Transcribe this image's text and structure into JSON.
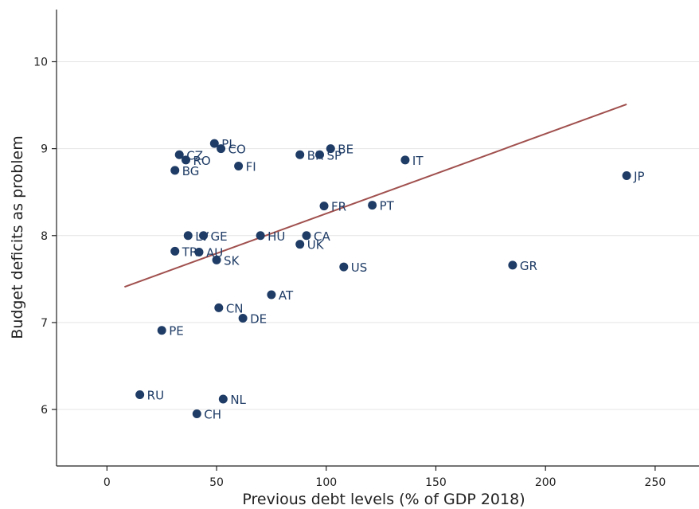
{
  "chart_data": {
    "type": "scatter",
    "title": "",
    "xlabel": "Previous debt levels (% of GDP 2018)",
    "ylabel": "Budget deficits as problem",
    "xlim": [
      -23,
      270
    ],
    "ylim": [
      5.35,
      10.6
    ],
    "xticks": [
      0,
      50,
      100,
      150,
      200,
      250
    ],
    "yticks": [
      6,
      7,
      8,
      9,
      10
    ],
    "grid": true,
    "legend": "none",
    "colors": {
      "points": "#1f3c66",
      "fit_line": "#a0504e",
      "grid": "#e4e4e4"
    },
    "points": [
      {
        "label": "PL",
        "x": 49,
        "y": 9.06
      },
      {
        "label": "CO",
        "x": 52,
        "y": 9.0
      },
      {
        "label": "CZ",
        "x": 33,
        "y": 8.93
      },
      {
        "label": "RO",
        "x": 36,
        "y": 8.87
      },
      {
        "label": "BG",
        "x": 31,
        "y": 8.75
      },
      {
        "label": "FI",
        "x": 60,
        "y": 8.8
      },
      {
        "label": "BR",
        "x": 88,
        "y": 8.93
      },
      {
        "label": "SP",
        "x": 97,
        "y": 8.93
      },
      {
        "label": "BE",
        "x": 102,
        "y": 9.0
      },
      {
        "label": "IT",
        "x": 136,
        "y": 8.87
      },
      {
        "label": "JP",
        "x": 237,
        "y": 8.69
      },
      {
        "label": "FR",
        "x": 99,
        "y": 8.34
      },
      {
        "label": "PT",
        "x": 121,
        "y": 8.35
      },
      {
        "label": "LV",
        "x": 37,
        "y": 8.0
      },
      {
        "label": "GE",
        "x": 44,
        "y": 8.0
      },
      {
        "label": "HU",
        "x": 70,
        "y": 8.0
      },
      {
        "label": "CA",
        "x": 91,
        "y": 8.0
      },
      {
        "label": "UK",
        "x": 88,
        "y": 7.9
      },
      {
        "label": "TR",
        "x": 31,
        "y": 7.82
      },
      {
        "label": "AU",
        "x": 42,
        "y": 7.81
      },
      {
        "label": "SK",
        "x": 50,
        "y": 7.72
      },
      {
        "label": "US",
        "x": 108,
        "y": 7.64
      },
      {
        "label": "GR",
        "x": 185,
        "y": 7.66
      },
      {
        "label": "AT",
        "x": 75,
        "y": 7.32
      },
      {
        "label": "CN",
        "x": 51,
        "y": 7.17
      },
      {
        "label": "DE",
        "x": 62,
        "y": 7.05
      },
      {
        "label": "PE",
        "x": 25,
        "y": 6.91
      },
      {
        "label": "RU",
        "x": 15,
        "y": 6.17
      },
      {
        "label": "NL",
        "x": 53,
        "y": 6.12
      },
      {
        "label": "CH",
        "x": 41,
        "y": 5.95
      }
    ],
    "fit_line": {
      "x": [
        8,
        237
      ],
      "y": [
        7.41,
        9.51
      ]
    }
  }
}
